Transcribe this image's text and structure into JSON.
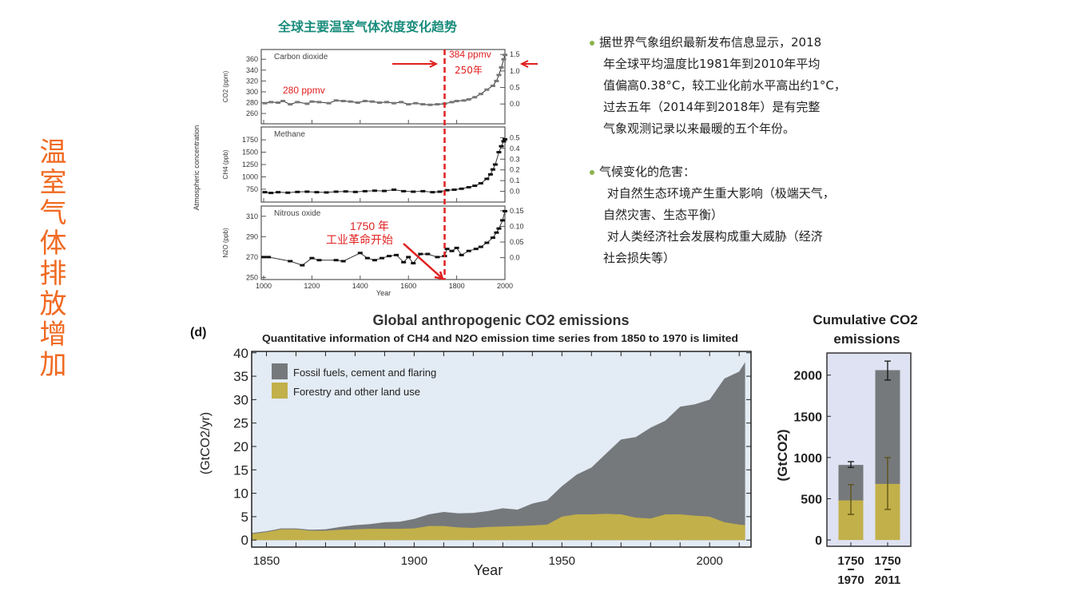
{
  "slide": {
    "side_title": "温室气体排放增加",
    "top_title": "全球主要温室气体浓度变化趋势",
    "bullets": [
      {
        "lines": [
          "据世界气象组织最新发布信息显示，2018",
          "年全球平均温度比1981年到2010年平均",
          "值偏高0.38°C，较工业化前水平高出约1°C，",
          "过去五年（2014年到2018年）是有完整",
          "气象观测记录以来最暖的五个年份。"
        ]
      },
      {
        "lines": [
          "气候变化的危害：",
          " 对自然生态环境产生重大影响（极端天气，",
          "自然灾害、生态平衡）",
          " 对人类经济社会发展构成重大威胁（经济",
          "社会损失等）"
        ]
      }
    ],
    "colors": {
      "side_title": "#f06a22",
      "top_title": "#1a8c7c",
      "bullet": "#8db14c",
      "annotation": "#e02020"
    }
  },
  "chart_data": [
    {
      "type": "scatter",
      "xlabel": "Year",
      "ylabel": "Atmospheric concentration",
      "xlim": [
        990,
        2000
      ],
      "xticks": [
        1000,
        1200,
        1400,
        1600,
        1800,
        2000
      ],
      "annotations": {
        "co2_now": "384 ppmv",
        "co2_span": "250年",
        "co2_pre": "280 ppmv",
        "year": "1750 年",
        "event": "工业革命开始",
        "marker_year": 1750
      },
      "panels": [
        {
          "name": "Carbon dioxide",
          "ylabel": "CO2 (ppm)",
          "ylim": [
            241,
            378
          ],
          "yticks": [
            260,
            280,
            300,
            320,
            340,
            360
          ],
          "ylim_right": [
            -0.6,
            1.65
          ],
          "yticks_right": [
            "0.0",
            "0.5",
            "1.0",
            "1.5"
          ],
          "points": [
            [
              1005,
              279
            ],
            [
              1030,
              281
            ],
            [
              1060,
              280
            ],
            [
              1080,
              283
            ],
            [
              1110,
              277
            ],
            [
              1140,
              281
            ],
            [
              1180,
              278
            ],
            [
              1200,
              282
            ],
            [
              1230,
              281
            ],
            [
              1270,
              279
            ],
            [
              1300,
              284
            ],
            [
              1330,
              283
            ],
            [
              1360,
              282
            ],
            [
              1390,
              280
            ],
            [
              1420,
              283
            ],
            [
              1450,
              282
            ],
            [
              1480,
              280
            ],
            [
              1510,
              281
            ],
            [
              1540,
              279
            ],
            [
              1570,
              281
            ],
            [
              1600,
              277
            ],
            [
              1630,
              279
            ],
            [
              1660,
              277
            ],
            [
              1690,
              276
            ],
            [
              1720,
              277
            ],
            [
              1750,
              278
            ],
            [
              1780,
              281
            ],
            [
              1800,
              283
            ],
            [
              1830,
              284
            ],
            [
              1850,
              286
            ],
            [
              1875,
              290
            ],
            [
              1900,
              296
            ],
            [
              1925,
              304
            ],
            [
              1950,
              311
            ],
            [
              1965,
              320
            ],
            [
              1975,
              331
            ],
            [
              1985,
              345
            ],
            [
              1995,
              360
            ],
            [
              2000,
              368
            ]
          ]
        },
        {
          "name": "Methane",
          "ylabel": "CH4 (ppb)",
          "ylim": [
            490,
            2010
          ],
          "yticks": [
            750,
            1000,
            1250,
            1500,
            1750
          ],
          "ylim_right": [
            -0.1,
            0.6
          ],
          "yticks_right": [
            "0.0",
            "0.1",
            "0.2",
            "0.3",
            "0.4",
            "0.5"
          ],
          "points": [
            [
              1005,
              690
            ],
            [
              1030,
              675
            ],
            [
              1060,
              690
            ],
            [
              1100,
              680
            ],
            [
              1140,
              695
            ],
            [
              1180,
              700
            ],
            [
              1220,
              690
            ],
            [
              1260,
              685
            ],
            [
              1300,
              700
            ],
            [
              1340,
              705
            ],
            [
              1380,
              695
            ],
            [
              1420,
              710
            ],
            [
              1460,
              720
            ],
            [
              1500,
              715
            ],
            [
              1540,
              740
            ],
            [
              1580,
              710
            ],
            [
              1620,
              700
            ],
            [
              1660,
              710
            ],
            [
              1700,
              690
            ],
            [
              1730,
              700
            ],
            [
              1760,
              730
            ],
            [
              1790,
              740
            ],
            [
              1820,
              760
            ],
            [
              1850,
              790
            ],
            [
              1875,
              820
            ],
            [
              1900,
              870
            ],
            [
              1925,
              960
            ],
            [
              1940,
              1050
            ],
            [
              1950,
              1150
            ],
            [
              1960,
              1250
            ],
            [
              1975,
              1500
            ],
            [
              1985,
              1620
            ],
            [
              1995,
              1720
            ],
            [
              2000,
              1760
            ]
          ]
        },
        {
          "name": "Nitrous oxide",
          "ylabel": "N2O (ppb)",
          "ylim": [
            248,
            320
          ],
          "yticks": [
            250,
            270,
            290,
            310
          ],
          "ylim_right": [
            -0.07,
            0.165
          ],
          "yticks_right": [
            "0.0",
            "0.05",
            "0.10",
            "0.15"
          ],
          "points": [
            [
              1000,
              270
            ],
            [
              1020,
              270
            ],
            [
              1110,
              266
            ],
            [
              1160,
              262
            ],
            [
              1200,
              269
            ],
            [
              1230,
              267
            ],
            [
              1300,
              267
            ],
            [
              1330,
              266
            ],
            [
              1400,
              274
            ],
            [
              1430,
              269
            ],
            [
              1460,
              267
            ],
            [
              1490,
              269
            ],
            [
              1520,
              271
            ],
            [
              1550,
              272
            ],
            [
              1580,
              265
            ],
            [
              1600,
              270
            ],
            [
              1620,
              264
            ],
            [
              1650,
              273
            ],
            [
              1680,
              273
            ],
            [
              1720,
              270
            ],
            [
              1750,
              271
            ],
            [
              1760,
              278
            ],
            [
              1780,
              276
            ],
            [
              1800,
              279
            ],
            [
              1820,
              272
            ],
            [
              1850,
              276
            ],
            [
              1880,
              278
            ],
            [
              1900,
              280
            ],
            [
              1925,
              284
            ],
            [
              1950,
              289
            ],
            [
              1965,
              294
            ],
            [
              1975,
              298
            ],
            [
              1990,
              306
            ],
            [
              2000,
              315
            ]
          ]
        }
      ]
    },
    {
      "type": "area",
      "label": "(d)",
      "title": "Global anthropogenic CO2 emissions",
      "subtitle": "Quantitative information of CH4 and N2O emission time series from 1850 to 1970 is limited",
      "xlabel": "Year",
      "ylabel": "(GtCO2/yr)",
      "xlim": [
        1845,
        2014
      ],
      "ylim": [
        -1.5,
        40.3
      ],
      "xticks": [
        1850,
        1900,
        1950,
        2000
      ],
      "yticks": [
        0,
        5,
        10,
        15,
        20,
        25,
        30,
        35,
        40
      ],
      "legend": "top-left",
      "x": [
        1845,
        1850,
        1855,
        1860,
        1865,
        1870,
        1875,
        1880,
        1885,
        1890,
        1895,
        1900,
        1905,
        1910,
        1915,
        1920,
        1925,
        1930,
        1935,
        1940,
        1945,
        1950,
        1955,
        1960,
        1965,
        1970,
        1975,
        1980,
        1985,
        1990,
        1995,
        2000,
        2005,
        2010,
        2012
      ],
      "series": [
        {
          "name": "Fossil fuels, cement and flaring",
          "color": "#76797c",
          "stacked_total": [
            1.5,
            1.9,
            2.5,
            2.5,
            2.2,
            2.3,
            2.8,
            3.2,
            3.4,
            3.8,
            3.9,
            4.5,
            5.5,
            6.0,
            5.7,
            5.8,
            6.2,
            6.8,
            6.5,
            7.8,
            8.5,
            11.5,
            14.0,
            15.5,
            18.5,
            21.5,
            22.0,
            24.0,
            25.5,
            28.5,
            29.0,
            30.0,
            34.5,
            36.0,
            38.0
          ]
        },
        {
          "name": "Forestry and other land use",
          "color": "#c2b04a",
          "values": [
            1.3,
            1.7,
            2.3,
            2.3,
            2.0,
            2.0,
            2.2,
            2.3,
            2.4,
            2.4,
            2.4,
            2.5,
            3.0,
            3.0,
            2.7,
            2.6,
            2.8,
            2.9,
            3.0,
            3.1,
            3.3,
            5.0,
            5.5,
            5.5,
            5.6,
            5.5,
            4.8,
            4.6,
            5.5,
            5.5,
            5.2,
            5.0,
            3.8,
            3.3,
            3.2
          ]
        }
      ]
    },
    {
      "type": "bar",
      "title": "Cumulative CO2 emissions",
      "ylabel": "(GtCO2)",
      "ylim": [
        -77,
        2268
      ],
      "yticks": [
        0,
        500,
        1000,
        1500,
        2000
      ],
      "categories": [
        [
          "1750",
          "1970"
        ],
        [
          "1750",
          "2011"
        ]
      ],
      "series": [
        {
          "name": "Fossil fuels, cement and flaring",
          "color": "#76797c",
          "stacked_total": [
            910,
            2060
          ],
          "error": [
            [
              880,
              950
            ],
            [
              1940,
              2170
            ]
          ]
        },
        {
          "name": "Forestry and other land use",
          "color": "#c2b04a",
          "values": [
            480,
            680
          ],
          "error": [
            [
              310,
              670
            ],
            [
              370,
              1000
            ]
          ]
        }
      ]
    }
  ]
}
